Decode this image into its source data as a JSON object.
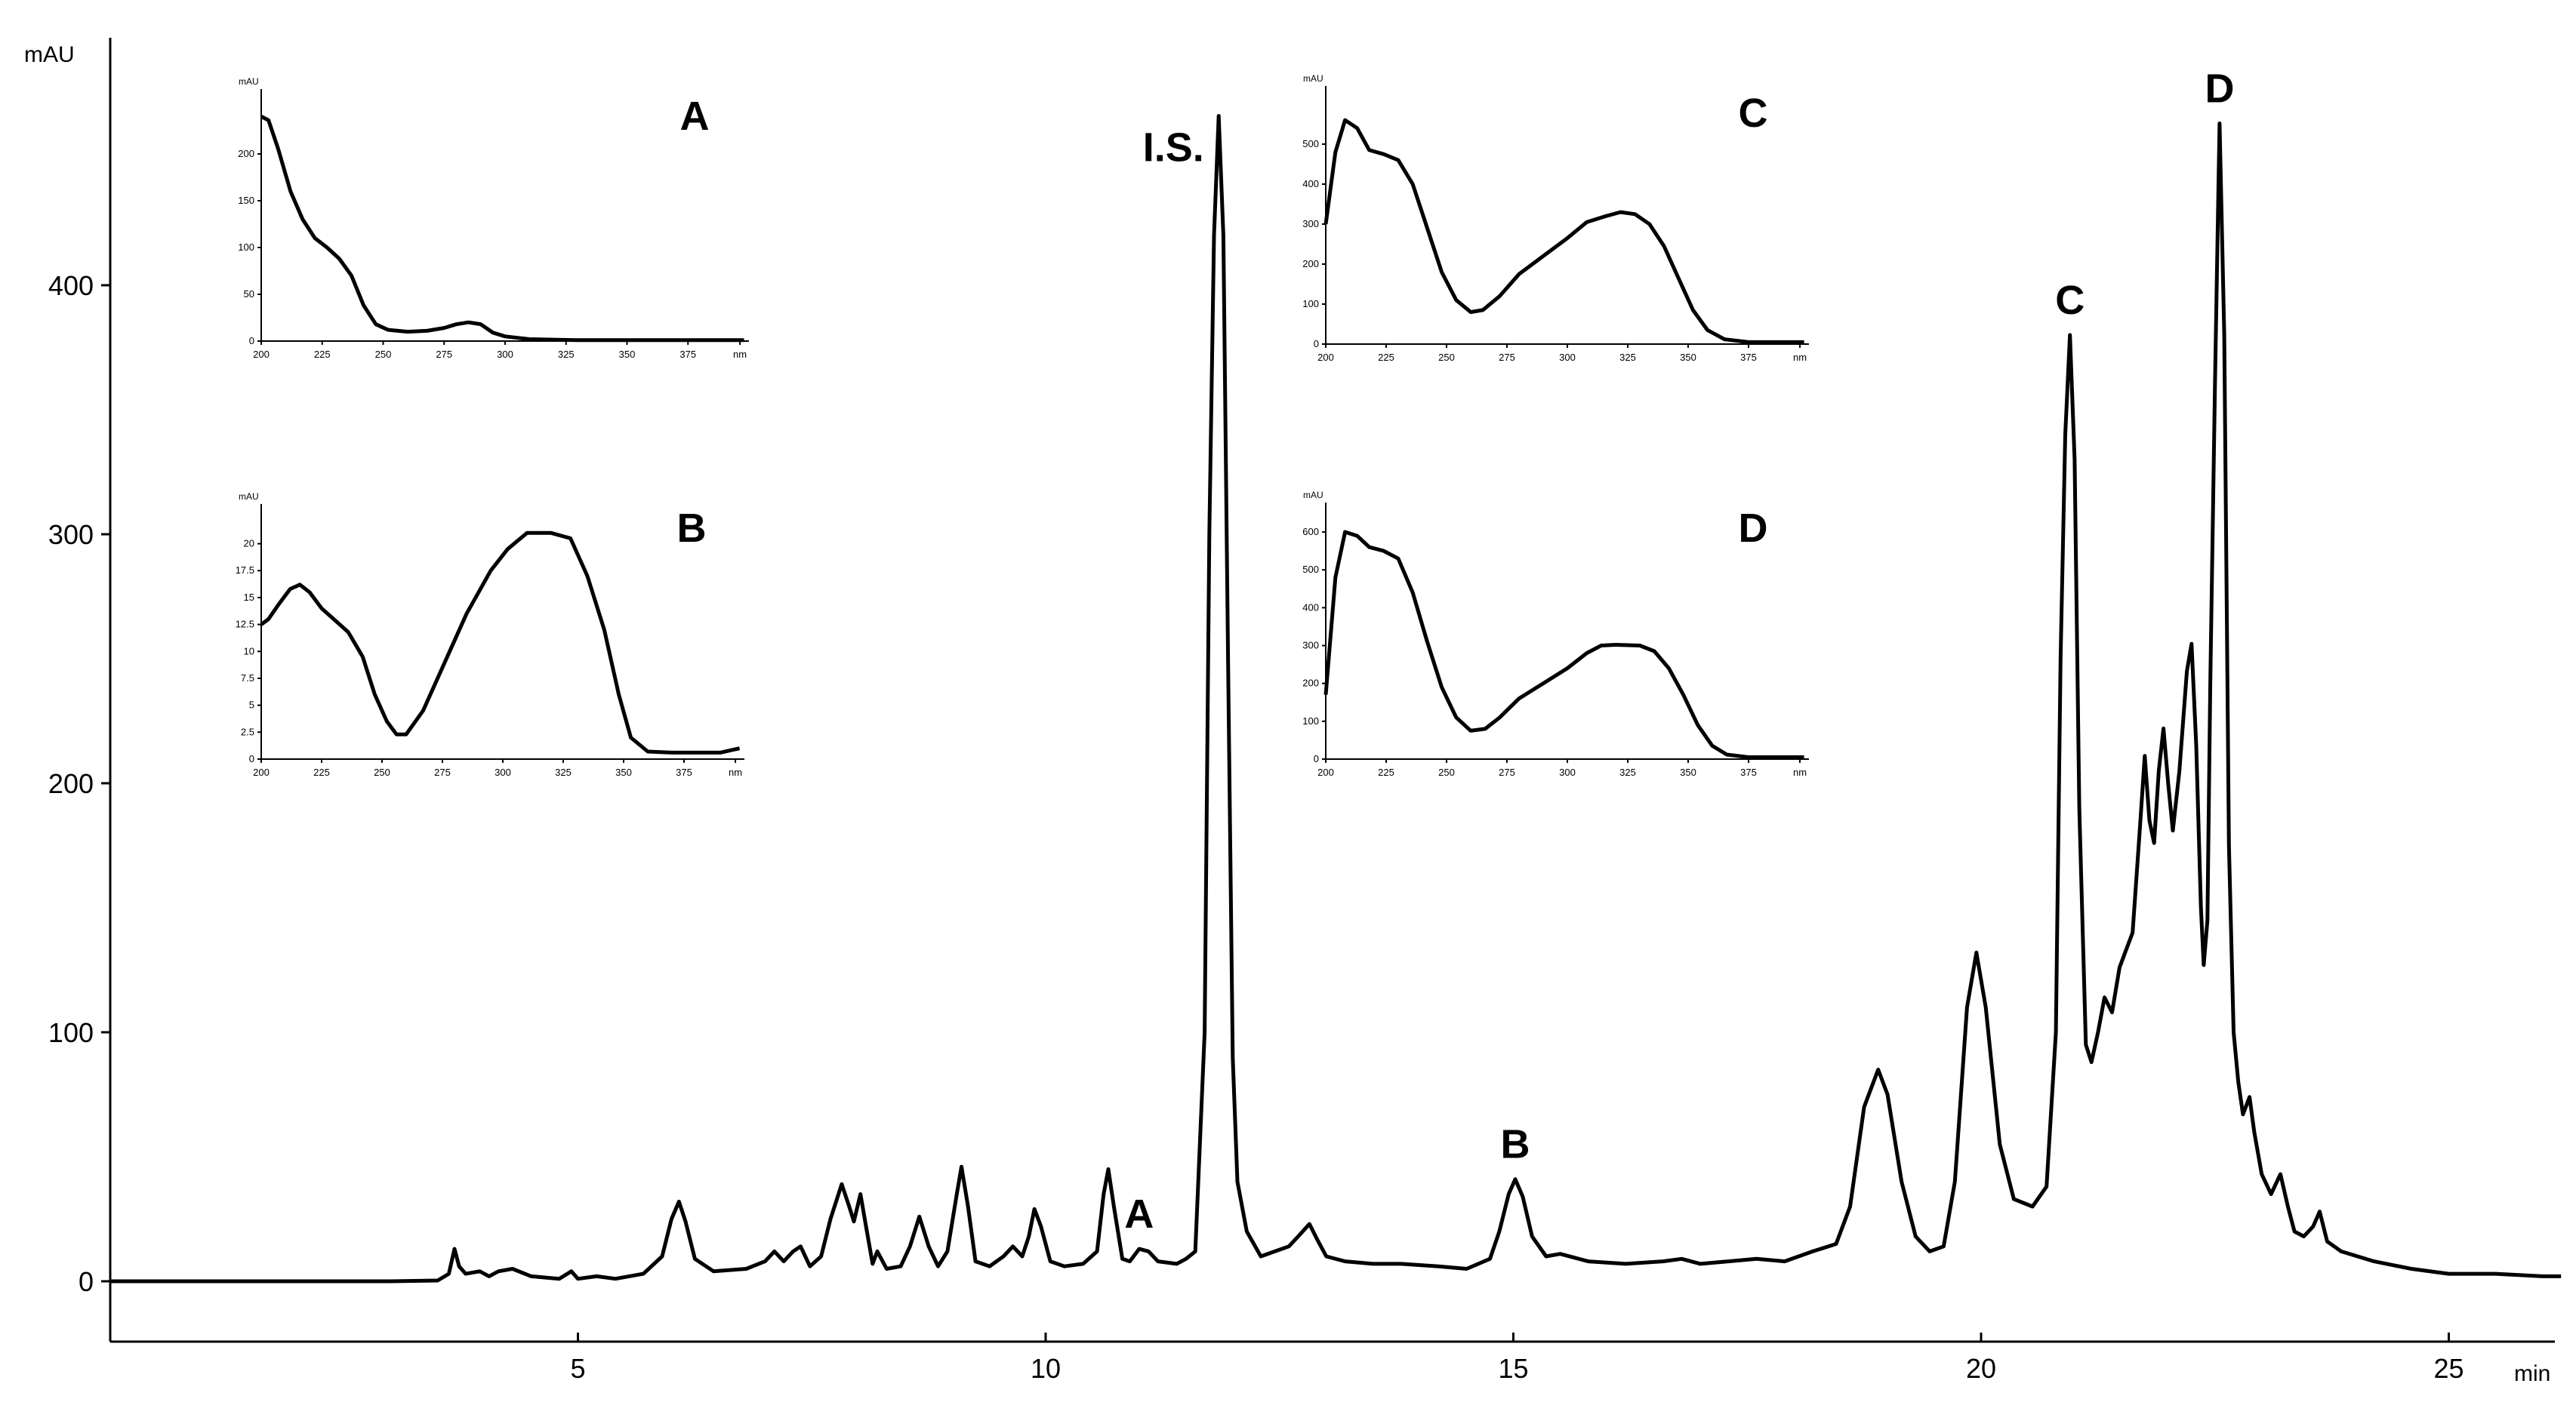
{
  "chart_data": {
    "type": "line",
    "title": "",
    "xlabel": "min",
    "ylabel": "mAU",
    "xlim": [
      0,
      26.2
    ],
    "ylim": [
      -25,
      500
    ],
    "x_ticks": [
      5,
      10,
      15,
      20,
      25
    ],
    "y_ticks": [
      0,
      100,
      200,
      300,
      400
    ],
    "grid": false,
    "series": [
      {
        "points": [
          [
            0,
            0
          ],
          [
            1,
            0
          ],
          [
            2,
            0
          ],
          [
            3,
            0
          ],
          [
            3.5,
            0.3
          ],
          [
            3.62,
            3
          ],
          [
            3.68,
            13
          ],
          [
            3.73,
            6
          ],
          [
            3.8,
            3
          ],
          [
            3.95,
            4
          ],
          [
            4.05,
            2
          ],
          [
            4.15,
            4
          ],
          [
            4.3,
            5
          ],
          [
            4.5,
            2
          ],
          [
            4.8,
            1
          ],
          [
            4.93,
            4
          ],
          [
            5.0,
            1
          ],
          [
            5.2,
            2
          ],
          [
            5.4,
            1
          ],
          [
            5.7,
            3
          ],
          [
            5.9,
            10
          ],
          [
            6.0,
            25
          ],
          [
            6.08,
            32
          ],
          [
            6.15,
            24
          ],
          [
            6.25,
            9
          ],
          [
            6.45,
            4
          ],
          [
            6.8,
            5
          ],
          [
            7.0,
            8
          ],
          [
            7.1,
            12
          ],
          [
            7.2,
            8
          ],
          [
            7.3,
            12
          ],
          [
            7.38,
            14
          ],
          [
            7.48,
            6
          ],
          [
            7.6,
            10
          ],
          [
            7.7,
            25
          ],
          [
            7.82,
            39
          ],
          [
            7.9,
            30
          ],
          [
            7.95,
            24
          ],
          [
            8.02,
            35
          ],
          [
            8.08,
            22
          ],
          [
            8.15,
            7
          ],
          [
            8.2,
            12
          ],
          [
            8.3,
            5
          ],
          [
            8.45,
            6
          ],
          [
            8.55,
            14
          ],
          [
            8.65,
            26
          ],
          [
            8.75,
            14
          ],
          [
            8.85,
            6
          ],
          [
            8.95,
            12
          ],
          [
            9.05,
            35
          ],
          [
            9.1,
            46
          ],
          [
            9.17,
            30
          ],
          [
            9.25,
            8
          ],
          [
            9.4,
            6
          ],
          [
            9.55,
            10
          ],
          [
            9.65,
            14
          ],
          [
            9.75,
            10
          ],
          [
            9.82,
            18
          ],
          [
            9.88,
            29
          ],
          [
            9.95,
            22
          ],
          [
            10.05,
            8
          ],
          [
            10.2,
            6
          ],
          [
            10.4,
            7
          ],
          [
            10.55,
            12
          ],
          [
            10.62,
            35
          ],
          [
            10.67,
            45
          ],
          [
            10.73,
            30
          ],
          [
            10.82,
            9
          ],
          [
            10.9,
            8
          ],
          [
            11.0,
            13
          ],
          [
            11.1,
            12
          ],
          [
            11.2,
            8
          ],
          [
            11.4,
            7
          ],
          [
            11.5,
            9
          ],
          [
            11.6,
            12
          ],
          [
            11.7,
            100
          ],
          [
            11.75,
            300
          ],
          [
            11.8,
            420
          ],
          [
            11.85,
            468
          ],
          [
            11.9,
            420
          ],
          [
            11.95,
            250
          ],
          [
            12.0,
            90
          ],
          [
            12.05,
            40
          ],
          [
            12.15,
            20
          ],
          [
            12.3,
            10
          ],
          [
            12.45,
            12
          ],
          [
            12.6,
            14
          ],
          [
            12.7,
            18
          ],
          [
            12.82,
            23
          ],
          [
            12.9,
            17
          ],
          [
            13.0,
            10
          ],
          [
            13.2,
            8
          ],
          [
            13.5,
            7
          ],
          [
            13.8,
            7
          ],
          [
            14.2,
            6
          ],
          [
            14.5,
            5
          ],
          [
            14.75,
            9
          ],
          [
            14.85,
            20
          ],
          [
            14.95,
            35
          ],
          [
            15.02,
            41
          ],
          [
            15.1,
            34
          ],
          [
            15.2,
            18
          ],
          [
            15.35,
            10
          ],
          [
            15.5,
            11
          ],
          [
            15.8,
            8
          ],
          [
            16.2,
            7
          ],
          [
            16.6,
            8
          ],
          [
            16.8,
            9
          ],
          [
            17.0,
            7
          ],
          [
            17.3,
            8
          ],
          [
            17.6,
            9
          ],
          [
            17.9,
            8
          ],
          [
            18.2,
            12
          ],
          [
            18.45,
            15
          ],
          [
            18.6,
            30
          ],
          [
            18.75,
            70
          ],
          [
            18.9,
            85
          ],
          [
            19.0,
            75
          ],
          [
            19.15,
            40
          ],
          [
            19.3,
            18
          ],
          [
            19.45,
            12
          ],
          [
            19.6,
            14
          ],
          [
            19.72,
            40
          ],
          [
            19.85,
            110
          ],
          [
            19.95,
            132
          ],
          [
            20.05,
            110
          ],
          [
            20.2,
            55
          ],
          [
            20.35,
            33
          ],
          [
            20.55,
            30
          ],
          [
            20.7,
            38
          ],
          [
            20.8,
            100
          ],
          [
            20.85,
            250
          ],
          [
            20.9,
            340
          ],
          [
            20.95,
            380
          ],
          [
            21.0,
            330
          ],
          [
            21.05,
            190
          ],
          [
            21.12,
            95
          ],
          [
            21.18,
            88
          ],
          [
            21.25,
            100
          ],
          [
            21.32,
            114
          ],
          [
            21.4,
            108
          ],
          [
            21.48,
            126
          ],
          [
            21.55,
            133
          ],
          [
            21.62,
            140
          ],
          [
            21.7,
            183
          ],
          [
            21.75,
            211
          ],
          [
            21.8,
            185
          ],
          [
            21.85,
            176
          ],
          [
            21.9,
            205
          ],
          [
            21.95,
            222
          ],
          [
            22.0,
            200
          ],
          [
            22.05,
            181
          ],
          [
            22.12,
            205
          ],
          [
            22.2,
            245
          ],
          [
            22.25,
            256
          ],
          [
            22.3,
            215
          ],
          [
            22.35,
            150
          ],
          [
            22.38,
            127
          ],
          [
            22.42,
            145
          ],
          [
            22.45,
            240
          ],
          [
            22.5,
            360
          ],
          [
            22.55,
            465
          ],
          [
            22.6,
            380
          ],
          [
            22.65,
            175
          ],
          [
            22.7,
            100
          ],
          [
            22.75,
            80
          ],
          [
            22.8,
            67
          ],
          [
            22.87,
            74
          ],
          [
            22.92,
            60
          ],
          [
            23.0,
            43
          ],
          [
            23.1,
            35
          ],
          [
            23.2,
            43
          ],
          [
            23.28,
            30
          ],
          [
            23.35,
            20
          ],
          [
            23.45,
            18
          ],
          [
            23.55,
            22
          ],
          [
            23.62,
            28
          ],
          [
            23.7,
            16
          ],
          [
            23.85,
            12
          ],
          [
            24.2,
            8
          ],
          [
            24.6,
            5
          ],
          [
            25.0,
            3
          ],
          [
            25.5,
            3
          ],
          [
            26.0,
            2
          ],
          [
            26.2,
            2
          ]
        ]
      }
    ],
    "annotations": [
      {
        "text": "I.S.",
        "x": 11.85,
        "y": 468
      },
      {
        "text": "A",
        "x": 11.0,
        "y": 13
      },
      {
        "text": "B",
        "x": 15.02,
        "y": 41
      },
      {
        "text": "C",
        "x": 20.95,
        "y": 380
      },
      {
        "text": "D",
        "x": 22.55,
        "y": 465
      }
    ]
  },
  "insets": [
    {
      "letter": "A",
      "unit": "mAU",
      "xlim": [
        200,
        400
      ],
      "ylim": [
        0,
        250
      ],
      "x_ticks": [
        "200",
        "225",
        "250",
        "275",
        "300",
        "325",
        "350",
        "375",
        "nm"
      ],
      "y_ticks": [
        "0",
        "50",
        "100",
        "150",
        "200"
      ],
      "y_tick_values": [
        0,
        50,
        100,
        150,
        200
      ],
      "points": [
        [
          200,
          240
        ],
        [
          203,
          236
        ],
        [
          207,
          205
        ],
        [
          212,
          160
        ],
        [
          217,
          130
        ],
        [
          222,
          110
        ],
        [
          227,
          100
        ],
        [
          232,
          88
        ],
        [
          237,
          70
        ],
        [
          242,
          38
        ],
        [
          247,
          18
        ],
        [
          252,
          12
        ],
        [
          260,
          10
        ],
        [
          268,
          11
        ],
        [
          275,
          14
        ],
        [
          280,
          18
        ],
        [
          285,
          20
        ],
        [
          290,
          18
        ],
        [
          295,
          9
        ],
        [
          300,
          5
        ],
        [
          310,
          2
        ],
        [
          330,
          1
        ],
        [
          360,
          1
        ],
        [
          380,
          1
        ],
        [
          398,
          1
        ]
      ]
    },
    {
      "letter": "B",
      "unit": "mAU",
      "xlim": [
        200,
        400
      ],
      "ylim": [
        0,
        22
      ],
      "x_ticks": [
        "200",
        "225",
        "250",
        "275",
        "300",
        "325",
        "350",
        "375",
        "nm"
      ],
      "y_ticks": [
        "0",
        "2.5",
        "5",
        "7.5",
        "10",
        "12.5",
        "15",
        "17.5",
        "20"
      ],
      "y_tick_values": [
        0,
        2.5,
        5,
        7.5,
        10,
        12.5,
        15,
        17.5,
        20
      ],
      "points": [
        [
          200,
          12.5
        ],
        [
          203,
          13
        ],
        [
          207,
          14.3
        ],
        [
          212,
          15.8
        ],
        [
          216,
          16.2
        ],
        [
          220,
          15.5
        ],
        [
          225,
          14.0
        ],
        [
          230,
          13.0
        ],
        [
          236,
          11.8
        ],
        [
          242,
          9.5
        ],
        [
          247,
          6.0
        ],
        [
          252,
          3.5
        ],
        [
          256,
          2.3
        ],
        [
          260,
          2.3
        ],
        [
          267,
          4.5
        ],
        [
          275,
          8.5
        ],
        [
          285,
          13.5
        ],
        [
          295,
          17.5
        ],
        [
          302,
          19.5
        ],
        [
          310,
          21.0
        ],
        [
          320,
          21.0
        ],
        [
          328,
          20.5
        ],
        [
          335,
          17.0
        ],
        [
          342,
          12.0
        ],
        [
          348,
          6.0
        ],
        [
          353,
          2.0
        ],
        [
          360,
          0.7
        ],
        [
          370,
          0.6
        ],
        [
          380,
          0.6
        ],
        [
          390,
          0.6
        ],
        [
          398,
          1.0
        ]
      ]
    },
    {
      "letter": "C",
      "unit": "mAU",
      "xlim": [
        200,
        400
      ],
      "ylim": [
        0,
        600
      ],
      "x_ticks": [
        "200",
        "225",
        "250",
        "275",
        "300",
        "325",
        "350",
        "375",
        "nm"
      ],
      "y_ticks": [
        "0",
        "100",
        "200",
        "300",
        "400",
        "500"
      ],
      "y_tick_values": [
        0,
        100,
        200,
        300,
        400,
        500
      ],
      "points": [
        [
          200,
          300
        ],
        [
          204,
          480
        ],
        [
          208,
          560
        ],
        [
          213,
          540
        ],
        [
          218,
          485
        ],
        [
          224,
          475
        ],
        [
          230,
          460
        ],
        [
          236,
          400
        ],
        [
          242,
          290
        ],
        [
          248,
          180
        ],
        [
          254,
          110
        ],
        [
          260,
          80
        ],
        [
          265,
          85
        ],
        [
          272,
          120
        ],
        [
          280,
          175
        ],
        [
          290,
          220
        ],
        [
          300,
          265
        ],
        [
          308,
          305
        ],
        [
          316,
          320
        ],
        [
          322,
          330
        ],
        [
          328,
          325
        ],
        [
          334,
          300
        ],
        [
          340,
          245
        ],
        [
          346,
          165
        ],
        [
          352,
          85
        ],
        [
          358,
          35
        ],
        [
          365,
          12
        ],
        [
          375,
          5
        ],
        [
          390,
          5
        ],
        [
          398,
          5
        ]
      ]
    },
    {
      "letter": "D",
      "unit": "mAU",
      "xlim": [
        200,
        400
      ],
      "ylim": [
        0,
        630
      ],
      "x_ticks": [
        "200",
        "225",
        "250",
        "275",
        "300",
        "325",
        "350",
        "375",
        "nm"
      ],
      "y_ticks": [
        "0",
        "100",
        "200",
        "300",
        "400",
        "500",
        "600"
      ],
      "y_tick_values": [
        0,
        100,
        200,
        300,
        400,
        500,
        600
      ],
      "points": [
        [
          200,
          170
        ],
        [
          204,
          480
        ],
        [
          208,
          600
        ],
        [
          213,
          590
        ],
        [
          218,
          560
        ],
        [
          224,
          550
        ],
        [
          230,
          530
        ],
        [
          236,
          440
        ],
        [
          242,
          310
        ],
        [
          248,
          190
        ],
        [
          254,
          110
        ],
        [
          260,
          75
        ],
        [
          266,
          80
        ],
        [
          272,
          110
        ],
        [
          280,
          160
        ],
        [
          290,
          200
        ],
        [
          300,
          240
        ],
        [
          308,
          280
        ],
        [
          314,
          300
        ],
        [
          320,
          302
        ],
        [
          330,
          300
        ],
        [
          336,
          285
        ],
        [
          342,
          240
        ],
        [
          348,
          170
        ],
        [
          354,
          90
        ],
        [
          360,
          35
        ],
        [
          366,
          12
        ],
        [
          375,
          5
        ],
        [
          390,
          5
        ],
        [
          398,
          5
        ]
      ]
    }
  ]
}
